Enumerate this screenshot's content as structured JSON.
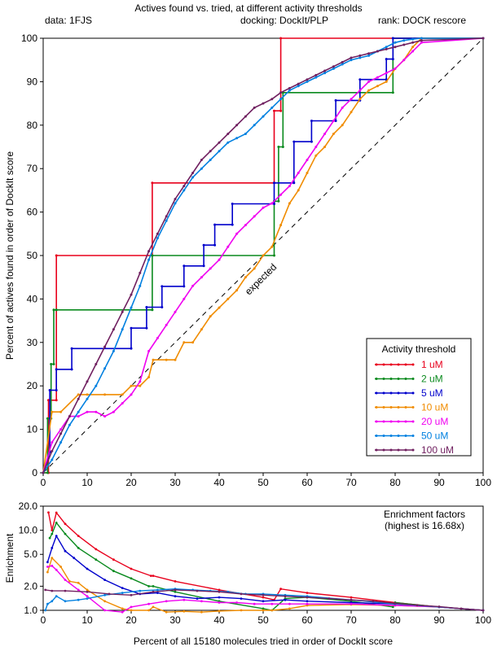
{
  "header": {
    "title": "Actives found vs. tried, at different activity thresholds",
    "data_label": "data: 1FJS",
    "docking_label": "docking: DockIt/PLP",
    "rank_label": "rank: DOCK rescore"
  },
  "chart_data": [
    {
      "type": "line",
      "xlabel": "",
      "ylabel": "Percent of actives found in order of DockIt score",
      "xlim": [
        0,
        100
      ],
      "ylim": [
        0,
        100
      ],
      "x_ticks": [
        0,
        10,
        20,
        30,
        40,
        50,
        60,
        70,
        80,
        90,
        100
      ],
      "y_ticks": [
        0,
        10,
        20,
        30,
        40,
        50,
        60,
        70,
        80,
        90,
        100
      ],
      "grid": false,
      "legend_title": "Activity threshold",
      "legend_position": "bottom-right",
      "reference_line": {
        "label": "expected",
        "x": [
          0,
          100
        ],
        "y": [
          0,
          100
        ]
      },
      "series": [
        {
          "name": "1 uM",
          "color": "#e8001c",
          "step": true,
          "x": [
            0,
            1.2,
            1.2,
            3.0,
            3.0,
            24.8,
            24.8,
            52.5,
            52.5,
            54.0,
            54.0,
            100
          ],
          "y": [
            0,
            0,
            16.7,
            16.7,
            50,
            50,
            66.7,
            66.7,
            83.3,
            83.3,
            100,
            100
          ]
        },
        {
          "name": "2 uM",
          "color": "#0a8a1e",
          "step": true,
          "x": [
            0,
            1.0,
            1.0,
            1.8,
            1.8,
            2.4,
            2.4,
            3.0,
            3.0,
            24.8,
            24.8,
            52.5,
            52.5,
            53.5,
            53.5,
            54.5,
            54.5,
            79.5,
            79.5,
            100
          ],
          "y": [
            0,
            0,
            12.5,
            12.5,
            25,
            25,
            37.5,
            37.5,
            37.5,
            37.5,
            50,
            50,
            62.5,
            62.5,
            75,
            75,
            87.5,
            87.5,
            100,
            100
          ]
        },
        {
          "name": "5 uM",
          "color": "#0000cc",
          "step": true,
          "x": [
            0,
            1.5,
            1.5,
            3.0,
            3.0,
            6.5,
            6.5,
            20.0,
            20.0,
            23.5,
            23.5,
            27.0,
            27.0,
            32.0,
            32.0,
            36.5,
            36.5,
            39.0,
            39.0,
            43.0,
            43.0,
            52.5,
            52.5,
            57.0,
            57.0,
            61.0,
            61.0,
            66.5,
            66.5,
            72.0,
            72.0,
            78.0,
            78.0,
            79.5,
            79.5,
            100
          ],
          "y": [
            0,
            4.8,
            19.0,
            19.0,
            23.8,
            23.8,
            28.6,
            28.6,
            33.3,
            33.3,
            38.1,
            38.1,
            42.9,
            42.9,
            47.6,
            47.6,
            52.4,
            52.4,
            57.1,
            57.1,
            61.9,
            61.9,
            66.7,
            66.7,
            76.2,
            76.2,
            81.0,
            81.0,
            85.7,
            85.7,
            90.5,
            90.5,
            95.2,
            95.2,
            100,
            100
          ]
        },
        {
          "name": "10 uM",
          "color": "#f08c00",
          "step": false,
          "x": [
            0,
            2,
            4,
            8,
            10,
            14,
            18,
            20,
            22,
            24,
            25,
            28,
            30,
            32,
            34,
            36,
            38,
            40,
            42,
            44,
            46,
            48,
            50,
            52,
            54,
            56,
            58,
            60,
            62,
            64,
            66,
            68,
            70,
            72,
            74,
            76,
            78,
            80,
            82,
            84,
            86,
            100
          ],
          "y": [
            0,
            14,
            14,
            18,
            18,
            18,
            18,
            20,
            20,
            22,
            26,
            26,
            26,
            30,
            30,
            33,
            36,
            38,
            40,
            42,
            45,
            47,
            50,
            52,
            57,
            62,
            65,
            69,
            73,
            75,
            78,
            80,
            83,
            86,
            88,
            89,
            90,
            93,
            95,
            98,
            100,
            100
          ]
        },
        {
          "name": "20 uM",
          "color": "#f000f0",
          "step": false,
          "x": [
            0,
            2,
            4,
            6,
            8,
            10,
            12,
            14,
            16,
            18,
            20,
            22,
            24,
            26,
            28,
            30,
            32,
            34,
            36,
            38,
            40,
            42,
            44,
            46,
            48,
            50,
            52,
            54,
            56,
            58,
            60,
            62,
            64,
            66,
            68,
            70,
            72,
            74,
            76,
            78,
            80,
            82,
            84,
            86,
            100
          ],
          "y": [
            0,
            7,
            10,
            13,
            13,
            14,
            14,
            13,
            14,
            16,
            18,
            21,
            28,
            31,
            34,
            37,
            40,
            43,
            45,
            47,
            49,
            52,
            55,
            57,
            59,
            61,
            62,
            64,
            66,
            69,
            72,
            75,
            78,
            81,
            84,
            86,
            88,
            90,
            91,
            92,
            93,
            95,
            97,
            99,
            100
          ]
        },
        {
          "name": "50 uM",
          "color": "#0080e0",
          "step": false,
          "x": [
            0,
            2,
            4,
            6,
            8,
            10,
            12,
            14,
            16,
            18,
            20,
            22,
            24,
            26,
            28,
            30,
            32,
            34,
            36,
            38,
            40,
            42,
            44,
            46,
            48,
            50,
            52,
            54,
            56,
            58,
            60,
            62,
            64,
            66,
            68,
            70,
            72,
            74,
            76,
            78,
            80,
            82,
            84,
            86,
            100
          ],
          "y": [
            0,
            3,
            7,
            11,
            14,
            17,
            20,
            24,
            28,
            33,
            38,
            43,
            49,
            54,
            58,
            62,
            65,
            68,
            70,
            72,
            74,
            76,
            77,
            78,
            80,
            82,
            84,
            86,
            88,
            89,
            90,
            91,
            92,
            93,
            94,
            95,
            95.5,
            96,
            97,
            98,
            99,
            99.5,
            99.8,
            100,
            100
          ]
        },
        {
          "name": "100 uM",
          "color": "#702060",
          "step": false,
          "x": [
            0,
            2,
            4,
            6,
            8,
            10,
            12,
            14,
            16,
            18,
            20,
            22,
            24,
            26,
            28,
            30,
            32,
            34,
            36,
            38,
            40,
            42,
            44,
            46,
            48,
            50,
            52,
            54,
            56,
            58,
            60,
            62,
            64,
            66,
            68,
            70,
            72,
            74,
            76,
            78,
            80,
            82,
            84,
            86,
            100
          ],
          "y": [
            0,
            5,
            9,
            13,
            17,
            21,
            25,
            29,
            33,
            37,
            41,
            46,
            51,
            55,
            59,
            63,
            66,
            69,
            72,
            74,
            76,
            78,
            80,
            82,
            84,
            85,
            86,
            87.5,
            88.5,
            89.5,
            90.5,
            91.5,
            92.5,
            93.5,
            94.5,
            95.5,
            96,
            96.5,
            97,
            97.5,
            98,
            98.5,
            99,
            99.5,
            100
          ]
        }
      ]
    },
    {
      "type": "line",
      "xlabel": "Percent of all 15180 molecules tried in order of DockIt score",
      "ylabel": "Enrichment",
      "yscale": "log",
      "xlim": [
        0,
        100
      ],
      "ylim": [
        1.0,
        20.0
      ],
      "x_ticks": [
        0,
        10,
        20,
        30,
        40,
        50,
        60,
        70,
        80,
        90,
        100
      ],
      "y_ticks": [
        1.0,
        2.0,
        5.0,
        10.0,
        20.0
      ],
      "y_tick_labels": [
        "1.0",
        "2.0",
        "5.0",
        "10.0",
        "20.0"
      ],
      "grid": false,
      "reference_line": {
        "y": 1.0
      },
      "annotation": [
        "Enrichment factors",
        "(highest is 16.68x)"
      ],
      "series": [
        {
          "name": "1 uM",
          "color": "#e8001c",
          "x": [
            1.2,
            2,
            3,
            5,
            8,
            12,
            16,
            20,
            24.5,
            25,
            30,
            40,
            50,
            52.5,
            54,
            60,
            70,
            80,
            90,
            100
          ],
          "y": [
            16.68,
            10,
            16.6,
            12,
            8.5,
            5.8,
            4.3,
            3.3,
            2.7,
            2.7,
            2.3,
            1.8,
            1.45,
            1.35,
            1.85,
            1.65,
            1.45,
            1.25,
            1.1,
            1.0
          ]
        },
        {
          "name": "2 uM",
          "color": "#0a8a1e",
          "x": [
            1.5,
            2,
            3,
            5,
            8,
            12,
            16,
            20,
            24,
            25,
            30,
            40,
            50,
            52,
            55,
            60,
            70,
            79.5,
            80,
            90,
            100
          ],
          "y": [
            8,
            9,
            12.4,
            9,
            6,
            4.3,
            3.1,
            2.5,
            2.0,
            2.0,
            1.7,
            1.3,
            1.05,
            1.0,
            1.4,
            1.45,
            1.3,
            1.1,
            1.25,
            1.1,
            1.0
          ]
        },
        {
          "name": "5 uM",
          "color": "#0000cc",
          "x": [
            1,
            2,
            3,
            5,
            7,
            10,
            14,
            18,
            22,
            26,
            30,
            35,
            40,
            45,
            50,
            55,
            60,
            70,
            80,
            90,
            100
          ],
          "y": [
            4,
            6,
            8.5,
            5.5,
            4.5,
            3.3,
            2.4,
            1.9,
            1.6,
            1.65,
            1.5,
            1.4,
            1.45,
            1.4,
            1.3,
            1.35,
            1.3,
            1.25,
            1.2,
            1.1,
            1.0
          ]
        },
        {
          "name": "10 uM",
          "color": "#f08c00",
          "x": [
            1,
            2,
            4,
            6,
            8,
            10,
            14,
            18,
            20,
            24,
            25,
            28,
            32,
            36,
            40,
            45,
            50,
            52,
            56,
            60,
            70,
            80,
            90,
            100
          ],
          "y": [
            3,
            4.5,
            3.5,
            2.3,
            2.2,
            1.8,
            1.3,
            1.05,
            1.0,
            1.0,
            1.1,
            0.95,
            0.97,
            0.95,
            0.98,
            1.0,
            1.0,
            1.0,
            1.05,
            1.15,
            1.18,
            1.15,
            1.1,
            1.0
          ]
        },
        {
          "name": "20 uM",
          "color": "#f000f0",
          "x": [
            1,
            2,
            3,
            5,
            8,
            10,
            14,
            18,
            20,
            24,
            28,
            32,
            36,
            40,
            44,
            48,
            52,
            56,
            60,
            70,
            80,
            90,
            100
          ],
          "y": [
            3.5,
            3.6,
            3.2,
            2.4,
            1.8,
            1.5,
            1.0,
            0.95,
            1.1,
            1.2,
            1.3,
            1.35,
            1.3,
            1.25,
            1.25,
            1.2,
            1.2,
            1.2,
            1.2,
            1.2,
            1.15,
            1.1,
            1.0
          ]
        },
        {
          "name": "50 uM",
          "color": "#0080e0",
          "x": [
            0.5,
            1,
            2,
            3,
            5,
            8,
            10,
            14,
            18,
            22,
            26,
            30,
            34,
            38,
            42,
            46,
            50,
            55,
            60,
            70,
            80,
            90,
            100
          ],
          "y": [
            1.0,
            1.2,
            1.3,
            1.5,
            1.3,
            1.35,
            1.4,
            1.55,
            1.65,
            1.75,
            1.8,
            1.85,
            1.8,
            1.75,
            1.7,
            1.6,
            1.6,
            1.55,
            1.5,
            1.35,
            1.2,
            1.1,
            1.0
          ]
        },
        {
          "name": "100 uM",
          "color": "#702060",
          "x": [
            0.5,
            2,
            5,
            10,
            15,
            20,
            25,
            30,
            35,
            40,
            45,
            50,
            55,
            60,
            65,
            70,
            75,
            80,
            85,
            90,
            95,
            100
          ],
          "y": [
            1.8,
            1.75,
            1.75,
            1.7,
            1.6,
            1.55,
            1.7,
            1.8,
            1.75,
            1.7,
            1.6,
            1.55,
            1.5,
            1.45,
            1.4,
            1.35,
            1.3,
            1.22,
            1.16,
            1.11,
            1.05,
            1.0
          ]
        }
      ]
    }
  ]
}
